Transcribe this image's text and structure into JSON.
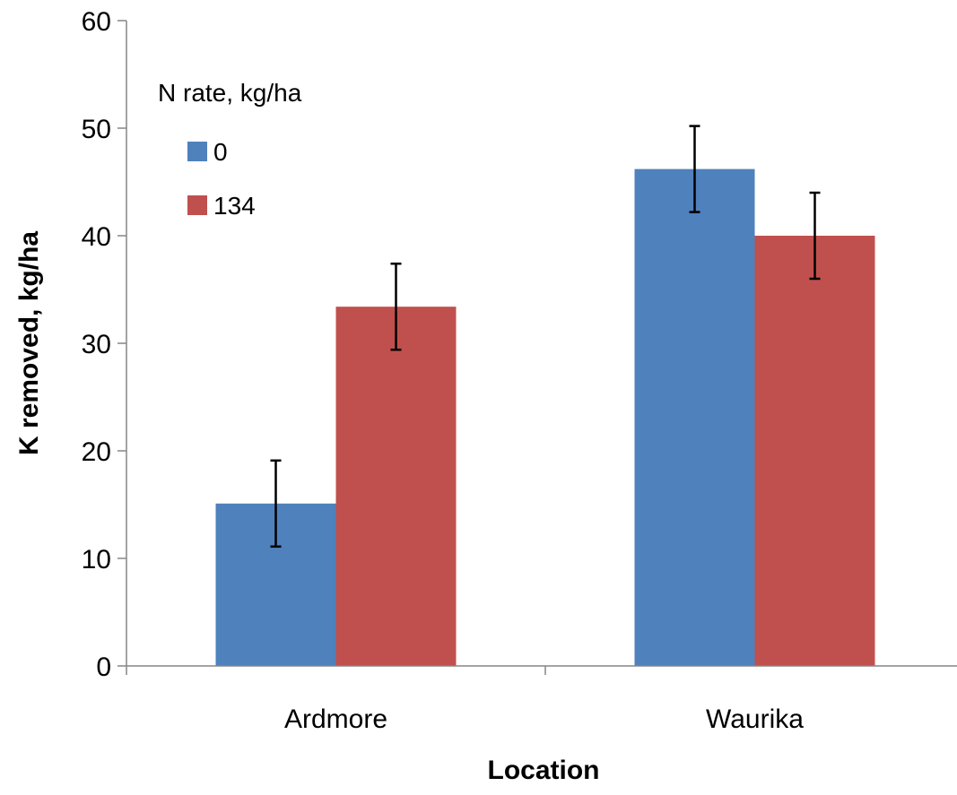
{
  "chart_data": {
    "type": "bar",
    "categories": [
      "Ardmore",
      "Waurika"
    ],
    "series": [
      {
        "name": "0",
        "values": [
          15.1,
          46.2
        ],
        "errors": [
          4.0,
          4.0
        ],
        "color": "#4F81BD"
      },
      {
        "name": "134",
        "values": [
          33.4,
          40.0
        ],
        "errors": [
          4.0,
          4.0
        ],
        "color": "#C0504D"
      }
    ],
    "xlabel": "Location",
    "ylabel": "K removed, kg/ha",
    "ylim": [
      0,
      60
    ],
    "yticks": [
      0,
      10,
      20,
      30,
      40,
      50,
      60
    ],
    "grid": false,
    "legend": {
      "title": "N rate, kg/ha",
      "placement": "top-left"
    }
  }
}
